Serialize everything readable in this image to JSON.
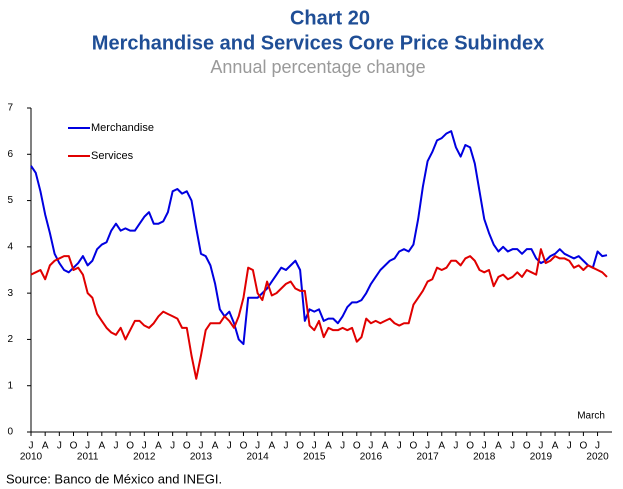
{
  "chart_data": {
    "type": "line",
    "title": "Chart 20",
    "subtitle": "Merchandise and Services Core Price Subindex",
    "y_label": "Annual percentage change",
    "annotation": "March",
    "source": "Source: Banco de México and INEGI.",
    "x_group_labels": [
      "2010",
      "2011",
      "2012",
      "2013",
      "2014",
      "2015",
      "2016",
      "2017",
      "2018",
      "2019",
      "2020"
    ],
    "categories": [
      "J",
      null,
      null,
      "A",
      null,
      null,
      "J",
      null,
      null,
      "O",
      null,
      null,
      "J",
      null,
      null,
      "A",
      null,
      null,
      "J",
      null,
      null,
      "O",
      null,
      null,
      "J",
      null,
      null,
      "A",
      null,
      null,
      "J",
      null,
      null,
      "O",
      null,
      null,
      "J",
      null,
      null,
      "A",
      null,
      null,
      "J",
      null,
      null,
      "O",
      null,
      null,
      "J",
      null,
      null,
      "A",
      null,
      null,
      "J",
      null,
      null,
      "O",
      null,
      null,
      "J",
      null,
      null,
      "A",
      null,
      null,
      "J",
      null,
      null,
      "O",
      null,
      null,
      "J",
      null,
      null,
      "A",
      null,
      null,
      "J",
      null,
      null,
      "O",
      null,
      null,
      "J",
      null,
      null,
      "A",
      null,
      null,
      "J",
      null,
      null,
      "O",
      null,
      null,
      "J",
      null,
      null,
      "A",
      null,
      null,
      "J",
      null,
      null,
      "O",
      null,
      null,
      "J",
      null,
      null,
      "A",
      null,
      null,
      "J",
      null,
      null,
      "O",
      null,
      null,
      "J",
      null,
      null
    ],
    "series": [
      {
        "name": "Merchandise",
        "color": "#0000e0",
        "values": [
          5.75,
          5.6,
          5.2,
          4.7,
          4.3,
          3.85,
          3.65,
          3.5,
          3.45,
          3.55,
          3.65,
          3.8,
          3.6,
          3.7,
          3.95,
          4.05,
          4.1,
          4.35,
          4.5,
          4.35,
          4.4,
          4.35,
          4.35,
          4.5,
          4.65,
          4.75,
          4.5,
          4.5,
          4.55,
          4.75,
          5.2,
          5.25,
          5.15,
          5.2,
          5.0,
          4.4,
          3.85,
          3.8,
          3.6,
          3.2,
          2.65,
          2.5,
          2.6,
          2.35,
          2.0,
          1.9,
          2.9,
          2.9,
          2.9,
          3.0,
          3.1,
          3.25,
          3.4,
          3.55,
          3.5,
          3.6,
          3.7,
          3.5,
          2.4,
          2.65,
          2.6,
          2.65,
          2.4,
          2.45,
          2.45,
          2.35,
          2.5,
          2.7,
          2.8,
          2.8,
          2.85,
          3.0,
          3.2,
          3.35,
          3.5,
          3.6,
          3.7,
          3.75,
          3.9,
          3.95,
          3.9,
          4.05,
          4.6,
          5.3,
          5.85,
          6.05,
          6.3,
          6.35,
          6.45,
          6.5,
          6.15,
          5.95,
          6.2,
          6.15,
          5.8,
          5.2,
          4.6,
          4.3,
          4.05,
          3.9,
          4.0,
          3.9,
          3.95,
          3.95,
          3.85,
          3.95,
          3.95,
          3.75,
          3.65,
          3.7,
          3.8,
          3.85,
          3.95,
          3.85,
          3.8,
          3.75,
          3.8,
          3.7,
          3.6,
          3.55,
          3.9,
          3.8,
          3.82
        ]
      },
      {
        "name": "Services",
        "color": "#e00000",
        "values": [
          3.4,
          3.45,
          3.5,
          3.3,
          3.6,
          3.7,
          3.75,
          3.8,
          3.8,
          3.5,
          3.55,
          3.4,
          3.0,
          2.9,
          2.55,
          2.4,
          2.25,
          2.15,
          2.1,
          2.25,
          2.0,
          2.2,
          2.4,
          2.4,
          2.3,
          2.25,
          2.35,
          2.5,
          2.6,
          2.55,
          2.5,
          2.45,
          2.25,
          2.25,
          1.65,
          1.15,
          1.65,
          2.2,
          2.35,
          2.35,
          2.35,
          2.5,
          2.4,
          2.25,
          2.5,
          2.9,
          3.55,
          3.5,
          3.0,
          2.85,
          3.25,
          2.95,
          3.0,
          3.1,
          3.2,
          3.25,
          3.1,
          3.05,
          3.05,
          2.3,
          2.2,
          2.4,
          2.05,
          2.25,
          2.2,
          2.2,
          2.25,
          2.2,
          2.25,
          1.95,
          2.05,
          2.45,
          2.35,
          2.4,
          2.35,
          2.4,
          2.45,
          2.35,
          2.3,
          2.35,
          2.35,
          2.75,
          2.9,
          3.05,
          3.25,
          3.3,
          3.55,
          3.5,
          3.55,
          3.7,
          3.7,
          3.6,
          3.75,
          3.8,
          3.7,
          3.5,
          3.45,
          3.5,
          3.15,
          3.35,
          3.4,
          3.3,
          3.35,
          3.45,
          3.35,
          3.5,
          3.45,
          3.4,
          3.95,
          3.65,
          3.7,
          3.8,
          3.75,
          3.75,
          3.7,
          3.55,
          3.6,
          3.5,
          3.6,
          3.55,
          3.5,
          3.45,
          3.35
        ]
      }
    ],
    "ylim": [
      0,
      7
    ],
    "yticks": [
      0,
      1,
      2,
      3,
      4,
      5,
      6,
      7
    ],
    "legend": "top-left"
  }
}
